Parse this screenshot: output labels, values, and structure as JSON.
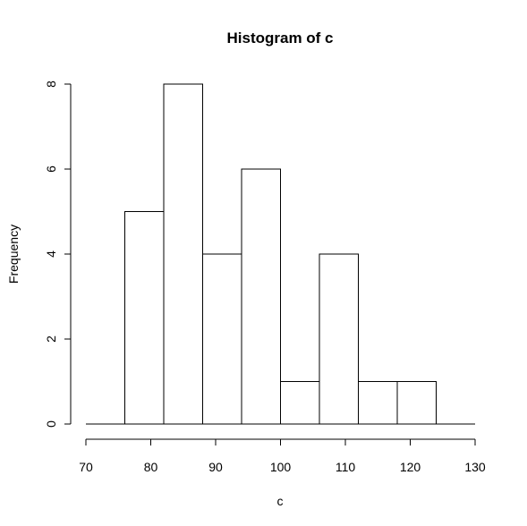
{
  "chart_data": {
    "type": "bar",
    "title": "Histogram of c",
    "xlabel": "c",
    "ylabel": "Frequency",
    "bins": [
      {
        "from": 70,
        "to": 76,
        "count": 0
      },
      {
        "from": 76,
        "to": 82,
        "count": 5
      },
      {
        "from": 82,
        "to": 88,
        "count": 8
      },
      {
        "from": 88,
        "to": 94,
        "count": 4
      },
      {
        "from": 94,
        "to": 100,
        "count": 6
      },
      {
        "from": 100,
        "to": 106,
        "count": 1
      },
      {
        "from": 106,
        "to": 112,
        "count": 4
      },
      {
        "from": 112,
        "to": 118,
        "count": 1
      },
      {
        "from": 118,
        "to": 124,
        "count": 1
      },
      {
        "from": 124,
        "to": 130,
        "count": 0
      }
    ],
    "xlim": [
      70,
      130
    ],
    "ylim": [
      0,
      8
    ],
    "xticks": [
      "70",
      "80",
      "90",
      "100",
      "110",
      "120",
      "130"
    ],
    "yticks": [
      "0",
      "2",
      "4",
      "6",
      "8"
    ],
    "grid": false,
    "colors": {
      "bar_fill": "#ffffff",
      "bar_stroke": "#000000"
    }
  }
}
